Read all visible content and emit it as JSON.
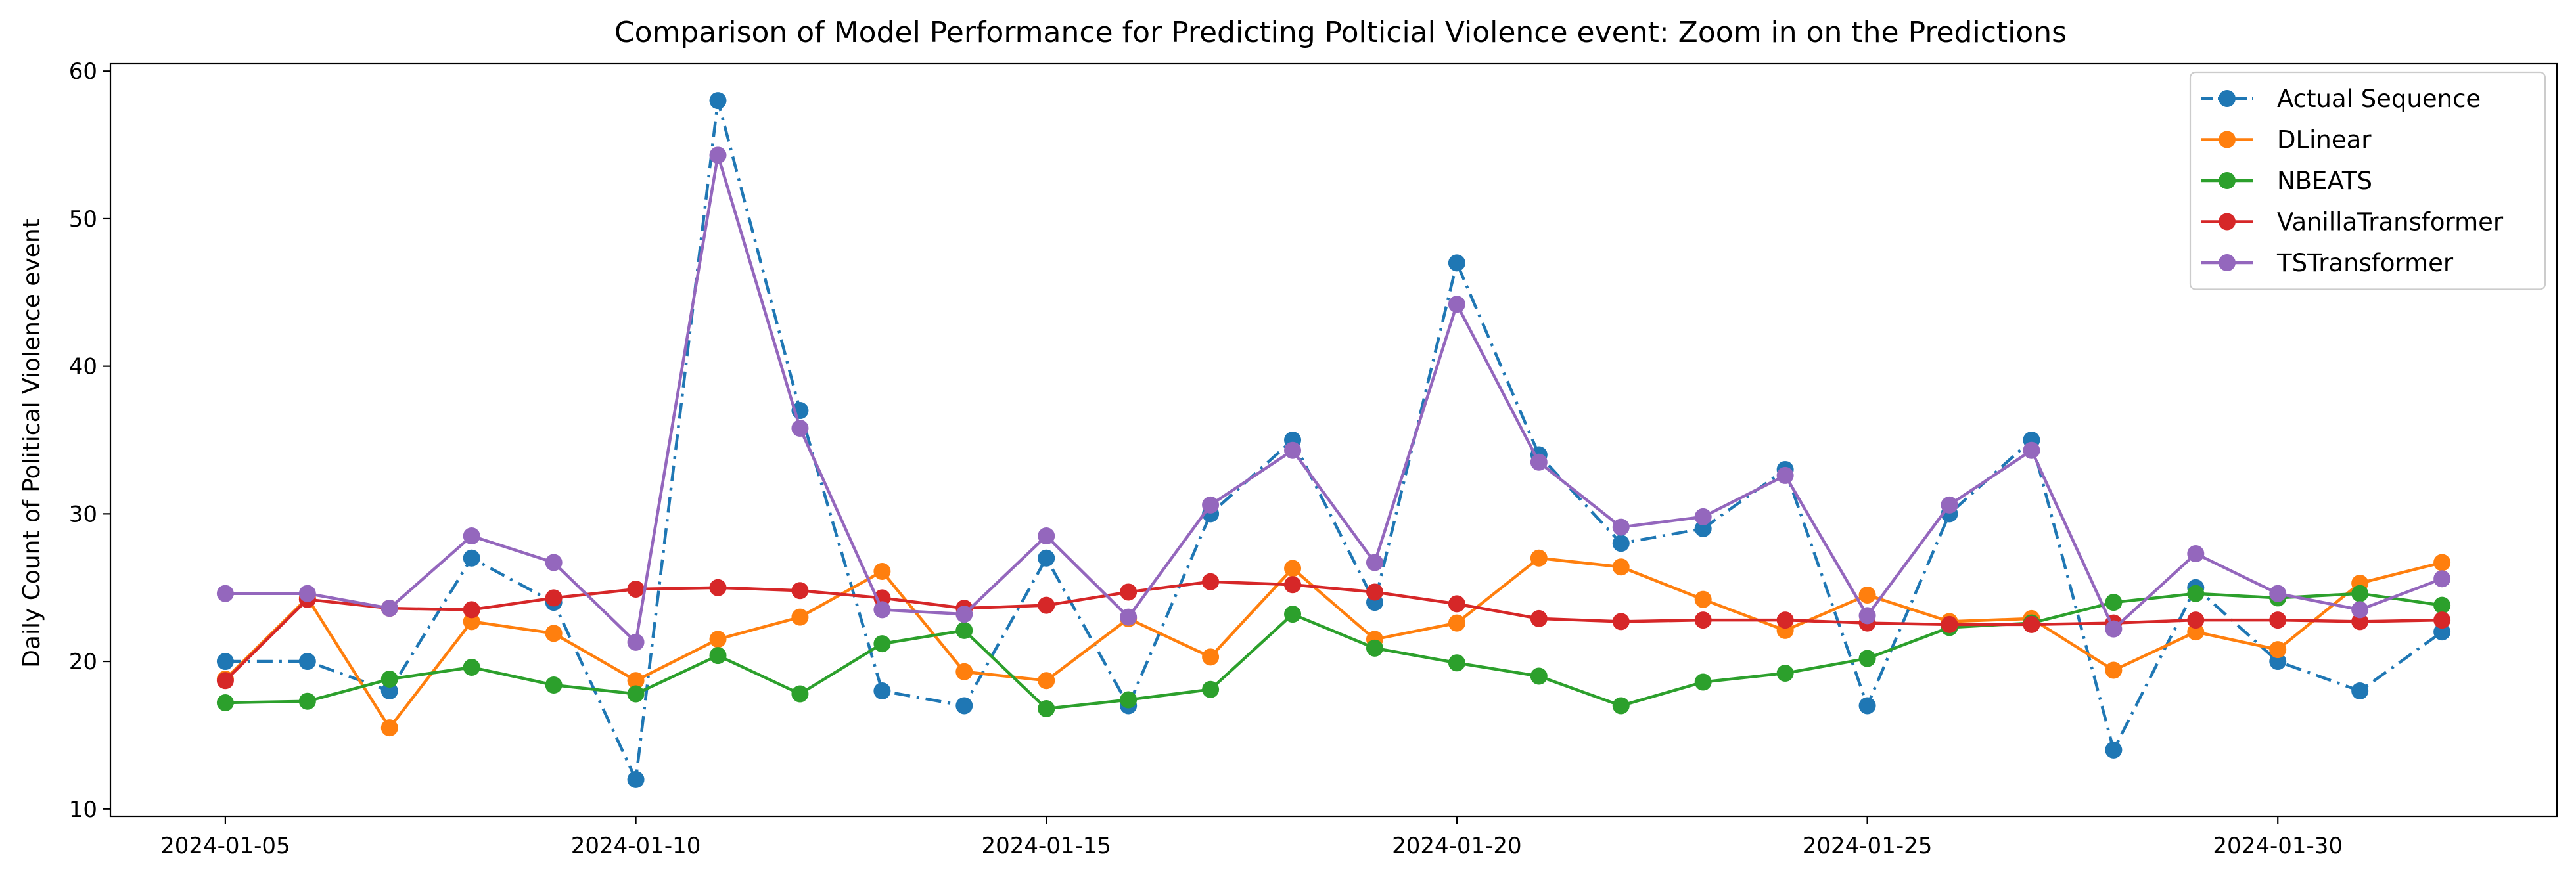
{
  "chart_data": {
    "type": "line",
    "title": "Comparison of Model Performance for Predicting Polticial Violence event: Zoom in on the Predictions",
    "xlabel": "",
    "ylabel": "Daily Count of Political Violence event",
    "x": [
      "2024-01-05",
      "2024-01-06",
      "2024-01-07",
      "2024-01-08",
      "2024-01-09",
      "2024-01-10",
      "2024-01-11",
      "2024-01-12",
      "2024-01-13",
      "2024-01-14",
      "2024-01-15",
      "2024-01-16",
      "2024-01-17",
      "2024-01-18",
      "2024-01-19",
      "2024-01-20",
      "2024-01-21",
      "2024-01-22",
      "2024-01-23",
      "2024-01-24",
      "2024-01-25",
      "2024-01-26",
      "2024-01-27",
      "2024-01-28",
      "2024-01-29",
      "2024-01-30",
      "2024-01-31",
      "2024-02-01"
    ],
    "xticks": [
      "2024-01-05",
      "2024-01-10",
      "2024-01-15",
      "2024-01-20",
      "2024-01-25",
      "2024-01-30"
    ],
    "xlim": [
      "2024-01-03.6",
      "2024-02-02.4"
    ],
    "yticks": [
      10,
      20,
      30,
      40,
      50,
      60
    ],
    "ylim": [
      9.5,
      60.5
    ],
    "grid": false,
    "legend_position": "top-right",
    "series": [
      {
        "name": "Actual Sequence",
        "color": "#1f77b4",
        "linestyle": "dashdot",
        "values": [
          20,
          20,
          18,
          27,
          24,
          12,
          58,
          37,
          18,
          17,
          27,
          17,
          30,
          35,
          24,
          47,
          34,
          28,
          29,
          33,
          17,
          30,
          35,
          14,
          25,
          20,
          18,
          22
        ]
      },
      {
        "name": "DLinear",
        "color": "#ff7f0e",
        "linestyle": "solid",
        "values": [
          18.8,
          24.3,
          15.5,
          22.7,
          21.9,
          18.7,
          21.5,
          23.0,
          26.1,
          19.3,
          18.7,
          22.9,
          20.3,
          26.3,
          21.5,
          22.6,
          27.0,
          26.4,
          24.2,
          22.1,
          24.5,
          22.7,
          22.9,
          19.4,
          22.0,
          20.8,
          25.3,
          26.7
        ]
      },
      {
        "name": "NBEATS",
        "color": "#2ca02c",
        "linestyle": "solid",
        "values": [
          17.2,
          17.3,
          18.8,
          19.6,
          18.4,
          17.8,
          20.4,
          17.8,
          21.2,
          22.1,
          16.8,
          17.4,
          18.1,
          23.2,
          20.9,
          19.9,
          19.0,
          17.0,
          18.6,
          19.2,
          20.2,
          22.3,
          22.6,
          24.0,
          24.6,
          24.3,
          24.6,
          23.8
        ]
      },
      {
        "name": "VanillaTransformer",
        "color": "#d62728",
        "linestyle": "solid",
        "values": [
          18.7,
          24.2,
          23.6,
          23.5,
          24.3,
          24.9,
          25.0,
          24.8,
          24.3,
          23.6,
          23.8,
          24.7,
          25.4,
          25.2,
          24.7,
          23.9,
          22.9,
          22.7,
          22.8,
          22.8,
          22.6,
          22.5,
          22.5,
          22.6,
          22.8,
          22.8,
          22.7,
          22.8
        ]
      },
      {
        "name": "TSTransformer",
        "color": "#9467bd",
        "linestyle": "solid",
        "values": [
          24.6,
          24.6,
          23.6,
          28.5,
          26.7,
          21.3,
          54.3,
          35.8,
          23.5,
          23.2,
          28.5,
          23.0,
          30.6,
          34.3,
          26.7,
          44.2,
          33.5,
          29.1,
          29.8,
          32.6,
          23.1,
          30.6,
          34.3,
          22.2,
          27.3,
          24.6,
          23.5,
          25.6
        ]
      }
    ]
  }
}
